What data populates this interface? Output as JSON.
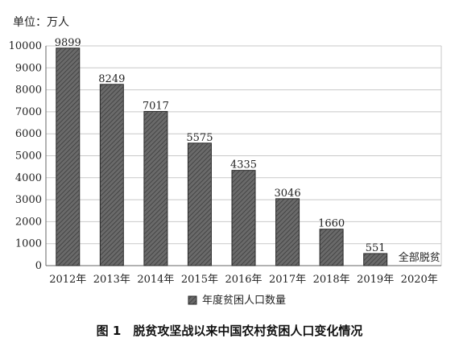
{
  "chart_data": {
    "type": "bar",
    "unit_label": "单位：万人",
    "categories": [
      "2012年",
      "2013年",
      "2014年",
      "2015年",
      "2016年",
      "2017年",
      "2018年",
      "2019年",
      "2020年"
    ],
    "series": [
      {
        "name": "年度贫困人口数量",
        "values": [
          9899,
          8249,
          7017,
          5575,
          4335,
          3046,
          1660,
          551,
          null
        ]
      }
    ],
    "data_labels": [
      "9899",
      "8249",
      "7017",
      "5575",
      "4335",
      "3046",
      "1660",
      "551",
      ""
    ],
    "annotations": [
      {
        "category": "2020年",
        "text": "全部脱贫"
      }
    ],
    "ylim": [
      0,
      10000
    ],
    "yticks": [
      0,
      1000,
      2000,
      3000,
      4000,
      5000,
      6000,
      7000,
      8000,
      9000,
      10000
    ],
    "grid": true,
    "legend_position": "bottom",
    "bar_color": "#5f5f5f"
  },
  "caption": "图 1　脱贫攻坚战以来中国农村贫困人口变化情况"
}
